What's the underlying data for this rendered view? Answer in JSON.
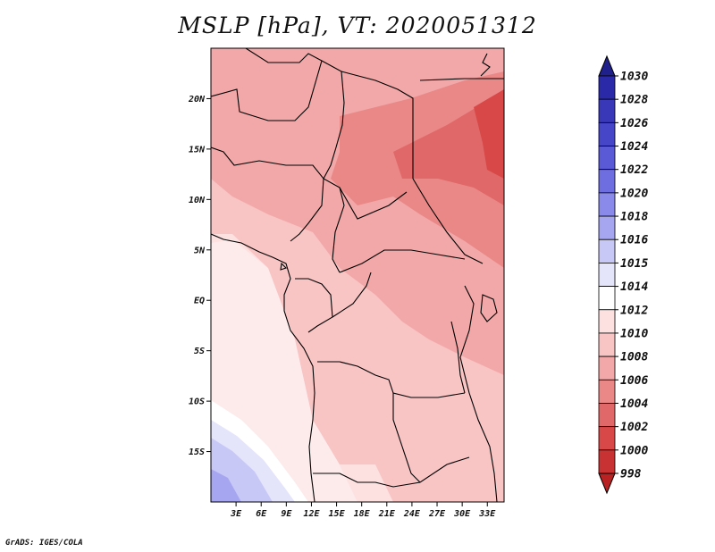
{
  "title": "MSLP [hPa], VT: 2020051312",
  "credit": "GrADS: IGES/COLA",
  "map": {
    "lat_range": [
      -20,
      25
    ],
    "lon_range": [
      0,
      35
    ],
    "lat_labels": [
      {
        "lat": 20,
        "text": "20N"
      },
      {
        "lat": 15,
        "text": "15N"
      },
      {
        "lat": 10,
        "text": "10N"
      },
      {
        "lat": 5,
        "text": "5N"
      },
      {
        "lat": 0,
        "text": "EQ"
      },
      {
        "lat": -5,
        "text": "5S"
      },
      {
        "lat": -10,
        "text": "10S"
      },
      {
        "lat": -15,
        "text": "15S"
      }
    ],
    "lon_labels": [
      {
        "lon": 3,
        "text": "3E"
      },
      {
        "lon": 6,
        "text": "6E"
      },
      {
        "lon": 9,
        "text": "9E"
      },
      {
        "lon": 12,
        "text": "12E"
      },
      {
        "lon": 15,
        "text": "15E"
      },
      {
        "lon": 18,
        "text": "18E"
      },
      {
        "lon": 21,
        "text": "21E"
      },
      {
        "lon": 24,
        "text": "24E"
      },
      {
        "lon": 27,
        "text": "27E"
      },
      {
        "lon": 30,
        "text": "30E"
      },
      {
        "lon": 33,
        "text": "33E"
      }
    ]
  },
  "colorbar": {
    "labels": [
      "1030",
      "1028",
      "1026",
      "1024",
      "1022",
      "1020",
      "1018",
      "1016",
      "1015",
      "1014",
      "1012",
      "1010",
      "1008",
      "1006",
      "1004",
      "1002",
      "1000",
      "998"
    ],
    "colors": [
      "#20208c",
      "#2a2aa8",
      "#3838b8",
      "#4646c8",
      "#5a5ad6",
      "#6e6ee0",
      "#8a8aea",
      "#a6a6f0",
      "#c8c8f6",
      "#e4e4fa",
      "#ffffff",
      "#fde0e0",
      "#f8c4c4",
      "#f2a8a8",
      "#ea8888",
      "#e06868",
      "#d84848",
      "#c83232",
      "#b82222"
    ]
  }
}
